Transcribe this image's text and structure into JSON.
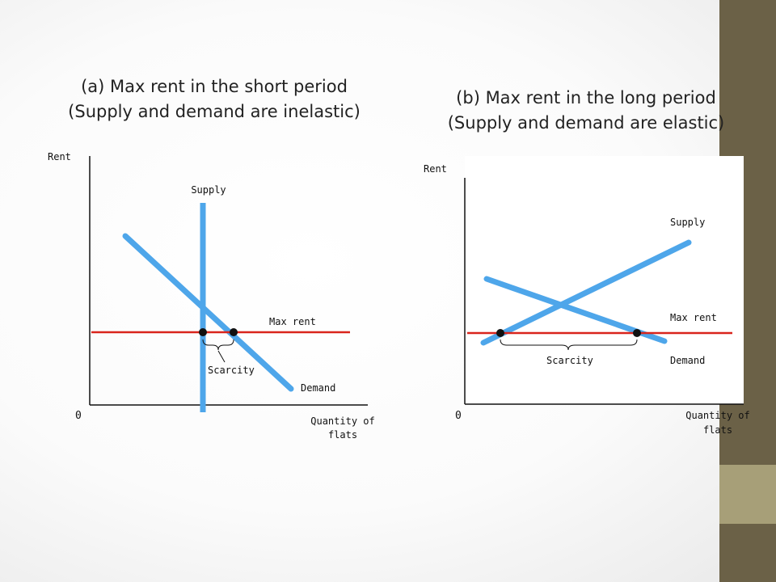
{
  "slide": {
    "accent_band_color": "#6b6147",
    "accent_band_light_color": "#a79f78"
  },
  "panel_a": {
    "title_line1": "(a) Max rent in the short period",
    "title_line2": "(Supply and demand are inelastic)",
    "y_axis_label": "Rent",
    "origin_label": "0",
    "x_axis_label_line1": "Quantity of",
    "x_axis_label_line2": "flats",
    "supply_label": "Supply",
    "demand_label": "Demand",
    "max_rent_label": "Max rent",
    "scarcity_label": "Scarcity"
  },
  "panel_b": {
    "title_line1": "(b) Max rent in the long period",
    "title_line2": "(Supply and demand are elastic)",
    "y_axis_label": "Rent",
    "origin_label": "0",
    "x_axis_label_line1": "Quantity of",
    "x_axis_label_line2": "flats",
    "supply_label": "Supply",
    "demand_label": "Demand",
    "max_rent_label": "Max rent",
    "scarcity_label": "Scarcity"
  },
  "colors": {
    "curve": "#4ea6ea",
    "max_rent_line": "#d9251c",
    "axis": "#111111"
  }
}
